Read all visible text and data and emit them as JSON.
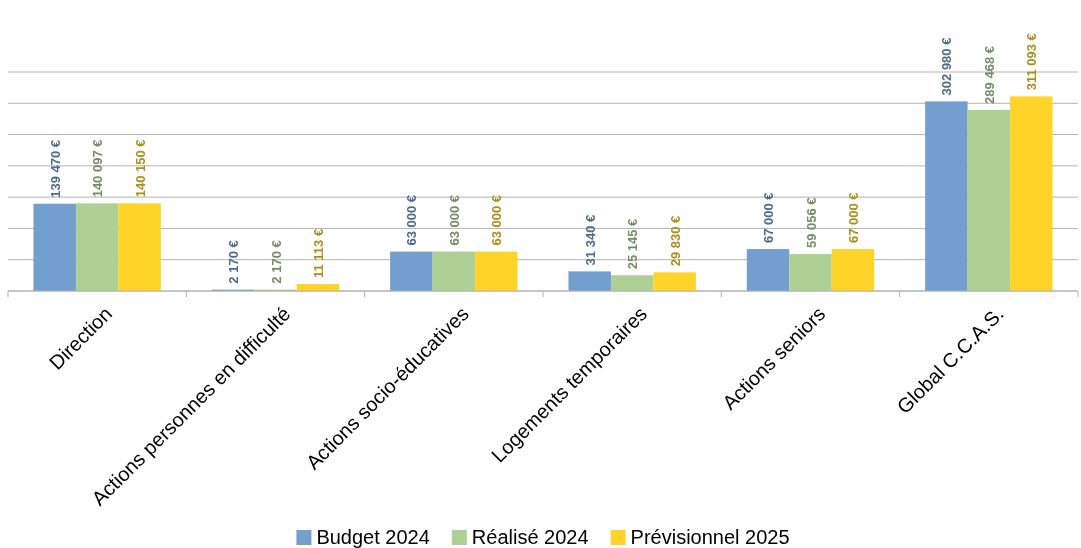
{
  "chart_data": {
    "type": "bar",
    "categories": [
      "Direction",
      "Actions personnes en difficulté",
      "Actions socio-éducatives",
      "Logements temporaires",
      "Actions seniors",
      "Global C.C.A.S."
    ],
    "series": [
      {
        "name": "Budget 2024",
        "color": "#729fcf",
        "values": [
          139470,
          2170,
          63000,
          31340,
          67000,
          302980
        ],
        "value_labels": [
          "139 470 €",
          "2 170 €",
          "63 000 €",
          "31 340 €",
          "67 000 €",
          "302 980 €"
        ]
      },
      {
        "name": "Réalisé 2024",
        "color": "#afd095",
        "values": [
          140097,
          2170,
          63000,
          25145,
          59056,
          289468
        ],
        "value_labels": [
          "140 097 €",
          "2 170 €",
          "63 000 €",
          "25 145 €",
          "59 056 €",
          "289 468 €"
        ]
      },
      {
        "name": "Prévisionnel 2025",
        "color": "#ffd428",
        "values": [
          140150,
          11113,
          63000,
          29830,
          67000,
          311093
        ],
        "value_labels": [
          "140 150 €",
          "11 113 €",
          "63 000 €",
          "29 830 €",
          "67 000 €",
          "311 093 €"
        ]
      }
    ],
    "ylim": [
      0,
      350000
    ],
    "yticks": [
      {
        "value": 0,
        "label": null
      },
      {
        "value": 50000,
        "label": null
      },
      {
        "value": 100000,
        "label": null
      },
      {
        "value": 150000,
        "label": null
      },
      {
        "value": 200000,
        "label": null
      },
      {
        "value": 250000,
        "label": null
      },
      {
        "value": 300000,
        "label": null
      },
      {
        "value": 350000,
        "label": null
      }
    ],
    "tick_labels": "x",
    "grid": "y",
    "legend": "bottom"
  }
}
